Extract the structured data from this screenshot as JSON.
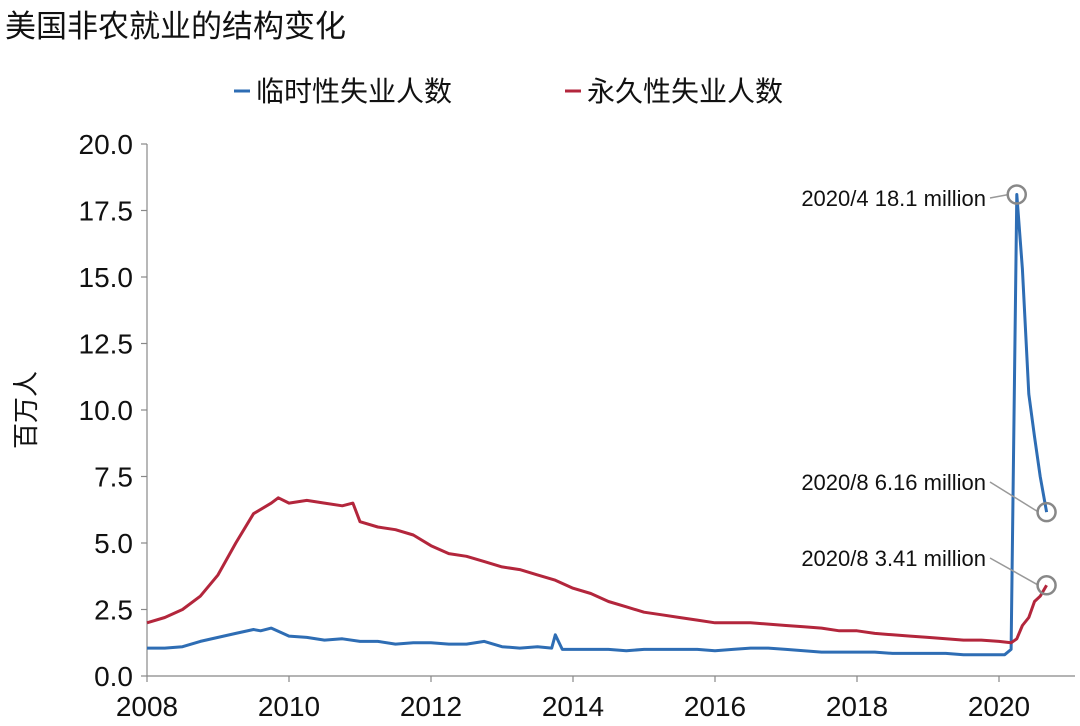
{
  "chart_data": {
    "type": "line",
    "title": "美国非农就业的结构变化",
    "ylabel": "百万人",
    "xlabel": "",
    "xlim": [
      2008,
      2020.95
    ],
    "ylim": [
      0,
      20
    ],
    "x_ticks": [
      2008,
      2010,
      2012,
      2014,
      2016,
      2018,
      2020
    ],
    "y_ticks": [
      "0.0",
      "2.5",
      "5.0",
      "7.5",
      "10.0",
      "12.5",
      "15.0",
      "17.5",
      "20.0"
    ],
    "legend_position": "top-center",
    "series": [
      {
        "name": "临时性失业人数",
        "color": "#2e6db4",
        "x": [
          2008.0,
          2008.25,
          2008.5,
          2008.75,
          2009.0,
          2009.25,
          2009.5,
          2009.6,
          2009.75,
          2010.0,
          2010.25,
          2010.5,
          2010.75,
          2011.0,
          2011.25,
          2011.5,
          2011.75,
          2012.0,
          2012.25,
          2012.5,
          2012.75,
          2013.0,
          2013.25,
          2013.5,
          2013.7,
          2013.75,
          2013.85,
          2014.0,
          2014.25,
          2014.5,
          2014.75,
          2015.0,
          2015.25,
          2015.5,
          2015.75,
          2016.0,
          2016.25,
          2016.5,
          2016.75,
          2017.0,
          2017.25,
          2017.5,
          2017.75,
          2018.0,
          2018.25,
          2018.5,
          2018.75,
          2019.0,
          2019.25,
          2019.5,
          2019.75,
          2020.0,
          2020.08,
          2020.17,
          2020.25,
          2020.33,
          2020.42,
          2020.5,
          2020.58,
          2020.67
        ],
        "values": [
          1.05,
          1.05,
          1.1,
          1.3,
          1.45,
          1.6,
          1.75,
          1.7,
          1.8,
          1.5,
          1.45,
          1.35,
          1.4,
          1.3,
          1.3,
          1.2,
          1.25,
          1.25,
          1.2,
          1.2,
          1.3,
          1.1,
          1.05,
          1.1,
          1.05,
          1.55,
          1.0,
          1.0,
          1.0,
          1.0,
          0.95,
          1.0,
          1.0,
          1.0,
          1.0,
          0.95,
          1.0,
          1.05,
          1.05,
          1.0,
          0.95,
          0.9,
          0.9,
          0.9,
          0.9,
          0.85,
          0.85,
          0.85,
          0.85,
          0.8,
          0.8,
          0.8,
          0.8,
          1.0,
          18.1,
          15.3,
          10.6,
          9.0,
          7.5,
          6.16
        ]
      },
      {
        "name": "永久性失业人数",
        "color": "#b3263c",
        "x": [
          2008.0,
          2008.25,
          2008.5,
          2008.75,
          2009.0,
          2009.25,
          2009.5,
          2009.75,
          2009.85,
          2010.0,
          2010.25,
          2010.5,
          2010.75,
          2010.9,
          2011.0,
          2011.25,
          2011.5,
          2011.75,
          2012.0,
          2012.25,
          2012.5,
          2012.75,
          2013.0,
          2013.25,
          2013.5,
          2013.75,
          2014.0,
          2014.25,
          2014.5,
          2014.75,
          2015.0,
          2015.25,
          2015.5,
          2015.75,
          2016.0,
          2016.25,
          2016.5,
          2016.75,
          2017.0,
          2017.25,
          2017.5,
          2017.75,
          2018.0,
          2018.25,
          2018.5,
          2018.75,
          2019.0,
          2019.25,
          2019.5,
          2019.75,
          2020.0,
          2020.17,
          2020.25,
          2020.33,
          2020.42,
          2020.5,
          2020.58,
          2020.67
        ],
        "values": [
          2.0,
          2.2,
          2.5,
          3.0,
          3.8,
          5.0,
          6.1,
          6.5,
          6.7,
          6.5,
          6.6,
          6.5,
          6.4,
          6.5,
          5.8,
          5.6,
          5.5,
          5.3,
          4.9,
          4.6,
          4.5,
          4.3,
          4.1,
          4.0,
          3.8,
          3.6,
          3.3,
          3.1,
          2.8,
          2.6,
          2.4,
          2.3,
          2.2,
          2.1,
          2.0,
          2.0,
          2.0,
          1.95,
          1.9,
          1.85,
          1.8,
          1.7,
          1.7,
          1.6,
          1.55,
          1.5,
          1.45,
          1.4,
          1.35,
          1.35,
          1.3,
          1.25,
          1.4,
          1.9,
          2.2,
          2.8,
          3.0,
          3.41
        ]
      }
    ],
    "annotations": [
      {
        "text": "2020/4 18.1 million",
        "x": 2020.25,
        "y": 18.1,
        "series": 0
      },
      {
        "text": "2020/8 6.16 million",
        "x": 2020.67,
        "y": 6.16,
        "series": 0
      },
      {
        "text": "2020/8 3.41 million",
        "x": 2020.67,
        "y": 3.41,
        "series": 1
      }
    ]
  }
}
